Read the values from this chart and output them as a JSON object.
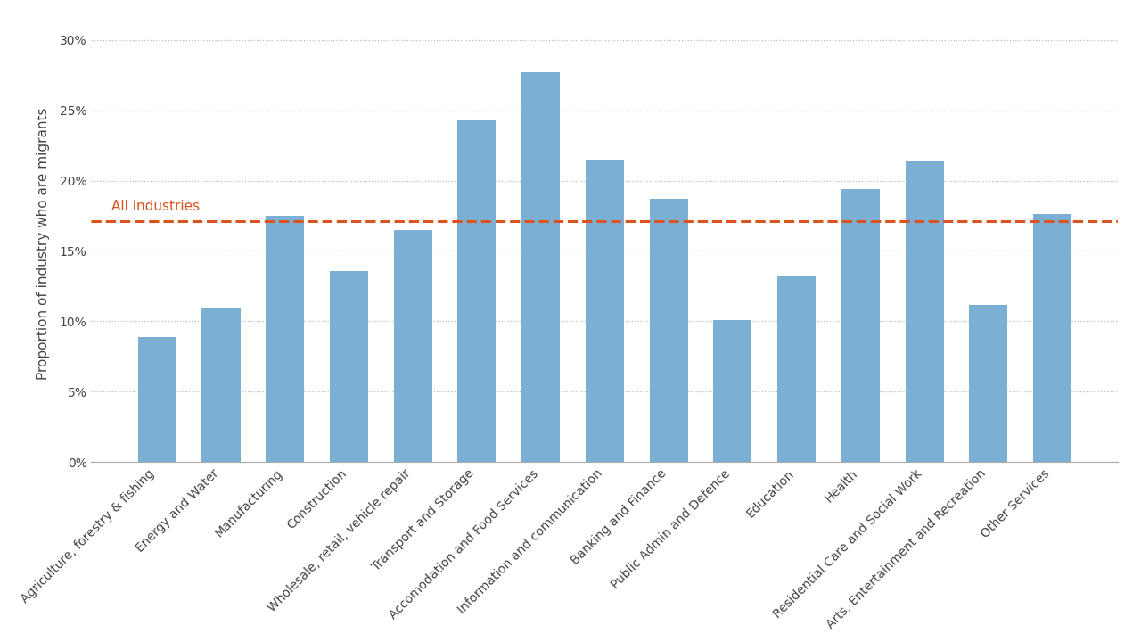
{
  "categories": [
    "Agriculture, forestry & fishing",
    "Energy and Water",
    "Manufacturing",
    "Construction",
    "Wholesale, retail, vehicle repair",
    "Transport and Storage",
    "Accomodation and Food Services",
    "Information and communication",
    "Banking and Finance",
    "Public Admin and Defence",
    "Education",
    "Health",
    "Residential Care and Social Work",
    "Arts, Entertainment and Recreation",
    "Other Services"
  ],
  "values": [
    0.089,
    0.11,
    0.175,
    0.136,
    0.165,
    0.243,
    0.277,
    0.215,
    0.187,
    0.101,
    0.132,
    0.194,
    0.214,
    0.112,
    0.176
  ],
  "bar_color": "#7BAFD4",
  "dashed_line_value": 0.171,
  "dashed_line_color": "#D9541E",
  "dashed_line_label": "All industries",
  "ylabel": "Proportion of industry who are migrants",
  "ylim": [
    0,
    0.31
  ],
  "yticks": [
    0.0,
    0.05,
    0.1,
    0.15,
    0.2,
    0.25,
    0.3
  ],
  "background_color": "#FFFFFF",
  "grid_color": "#BBBBBB",
  "bar_edge_color": "none",
  "label_fontsize": 11,
  "tick_fontsize": 10,
  "annotation_fontsize": 11
}
